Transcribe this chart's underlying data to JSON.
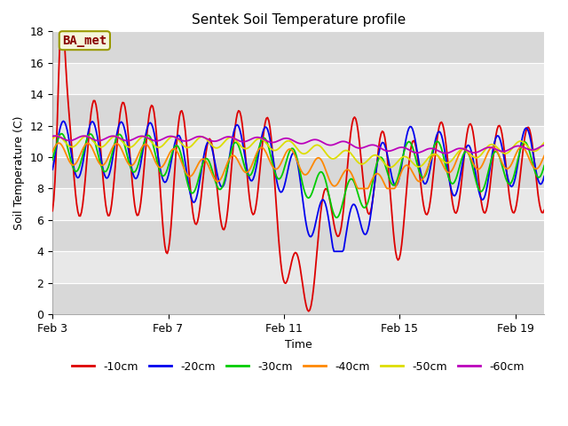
{
  "title": "Sentek Soil Temperature profile",
  "xlabel": "Time",
  "ylabel": "Soil Temperature (C)",
  "ylim": [
    0,
    18
  ],
  "yticks": [
    0,
    2,
    4,
    6,
    8,
    10,
    12,
    14,
    16,
    18
  ],
  "xtick_labels": [
    "Feb 3",
    "Feb 7",
    "Feb 11",
    "Feb 15",
    "Feb 19"
  ],
  "xtick_pos": [
    0,
    4,
    8,
    12,
    16
  ],
  "xlim": [
    0,
    17
  ],
  "legend_labels": [
    "-10cm",
    "-20cm",
    "-30cm",
    "-40cm",
    "-50cm",
    "-60cm"
  ],
  "line_colors": [
    "#dd0000",
    "#0000ee",
    "#00cc00",
    "#ff8800",
    "#dddd00",
    "#bb00bb"
  ],
  "line_widths": [
    1.3,
    1.3,
    1.3,
    1.3,
    1.3,
    1.3
  ],
  "fig_bg_color": "#ffffff",
  "plot_bg_color": "#e8e8e8",
  "band_colors": [
    "#d8d8d8",
    "#e8e8e8"
  ],
  "grid_color": "#ffffff",
  "annotation_text": "BA_met",
  "annotation_color": "#880000",
  "annotation_box_facecolor": "#f5f5dc",
  "annotation_box_edgecolor": "#999900",
  "figsize": [
    6.4,
    4.8
  ],
  "dpi": 100,
  "title_fontsize": 11,
  "axis_label_fontsize": 9,
  "tick_fontsize": 9,
  "legend_fontsize": 9
}
